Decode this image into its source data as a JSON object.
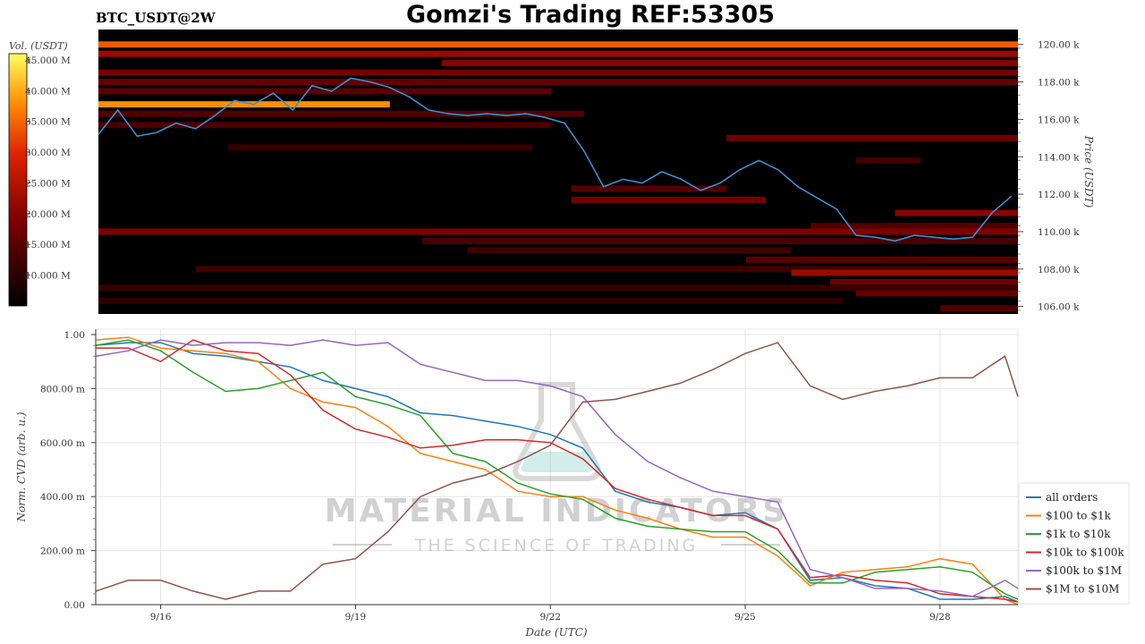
{
  "header": {
    "pair_label": "BTC_USDT@2W",
    "title": "Gomzi's Trading REF:53305"
  },
  "colors": {
    "accent_title": "#000000",
    "heatmap_background": "#000000",
    "price_line": "#3b8fd0"
  },
  "watermark": {
    "brand": "MATERIAL INDICATORS",
    "tagline": "THE SCIENCE OF TRADING",
    "icon": "flask-icon"
  },
  "chart_data": [
    {
      "type": "heatmap",
      "name": "order-book-liquidity",
      "xlabel": "",
      "ylabel": "Price (USDT)",
      "ylim": [
        105600,
        120800
      ],
      "y_ticks": [
        {
          "value": 106000,
          "label": "106.00 k"
        },
        {
          "value": 108000,
          "label": "108.00 k"
        },
        {
          "value": 110000,
          "label": "110.00 k"
        },
        {
          "value": 112000,
          "label": "112.00 k"
        },
        {
          "value": 114000,
          "label": "114.00 k"
        },
        {
          "value": 116000,
          "label": "116.00 k"
        },
        {
          "value": 118000,
          "label": "118.00 k"
        },
        {
          "value": 120000,
          "label": "120.00 k"
        }
      ],
      "colorbar": {
        "label": "Vol. (USDT)",
        "range": [
          5000000,
          46000000
        ],
        "ticks": [
          {
            "value": 10000000,
            "label": "10.000 M"
          },
          {
            "value": 15000000,
            "label": "15.000 M"
          },
          {
            "value": 20000000,
            "label": "20.000 M"
          },
          {
            "value": 25000000,
            "label": "25.000 M"
          },
          {
            "value": 30000000,
            "label": "30.000 M"
          },
          {
            "value": 35000000,
            "label": "35.000 M"
          },
          {
            "value": 40000000,
            "label": "40.000 M"
          },
          {
            "value": 45000000,
            "label": "45.000 M"
          }
        ]
      },
      "liquidity_bands": [
        {
          "price": 120000,
          "start_day": 0.0,
          "end_day": 14.2,
          "volume": 34000000
        },
        {
          "price": 119500,
          "start_day": 0.0,
          "end_day": 14.2,
          "volume": 22000000
        },
        {
          "price": 119000,
          "start_day": 5.3,
          "end_day": 14.2,
          "volume": 20000000
        },
        {
          "price": 118500,
          "start_day": 0.0,
          "end_day": 14.2,
          "volume": 18000000
        },
        {
          "price": 118000,
          "start_day": 0.0,
          "end_day": 14.2,
          "volume": 16000000
        },
        {
          "price": 117500,
          "start_day": 0.0,
          "end_day": 7.0,
          "volume": 15000000
        },
        {
          "price": 116800,
          "start_day": 0.0,
          "end_day": 4.5,
          "volume": 38000000
        },
        {
          "price": 116300,
          "start_day": 0.0,
          "end_day": 7.5,
          "volume": 14000000
        },
        {
          "price": 115700,
          "start_day": 0.0,
          "end_day": 7.0,
          "volume": 13000000
        },
        {
          "price": 115000,
          "start_day": 9.7,
          "end_day": 14.2,
          "volume": 17000000
        },
        {
          "price": 114500,
          "start_day": 2.0,
          "end_day": 6.7,
          "volume": 11000000
        },
        {
          "price": 113800,
          "start_day": 11.7,
          "end_day": 12.7,
          "volume": 12000000
        },
        {
          "price": 112300,
          "start_day": 7.3,
          "end_day": 9.7,
          "volume": 14000000
        },
        {
          "price": 111700,
          "start_day": 7.3,
          "end_day": 10.3,
          "volume": 18000000
        },
        {
          "price": 111000,
          "start_day": 12.3,
          "end_day": 14.2,
          "volume": 20000000
        },
        {
          "price": 110300,
          "start_day": 11.0,
          "end_day": 14.2,
          "volume": 14000000
        },
        {
          "price": 110000,
          "start_day": 0.0,
          "end_day": 14.2,
          "volume": 19000000
        },
        {
          "price": 109500,
          "start_day": 5.0,
          "end_day": 14.2,
          "volume": 13000000
        },
        {
          "price": 109000,
          "start_day": 5.7,
          "end_day": 10.7,
          "volume": 12000000
        },
        {
          "price": 108500,
          "start_day": 10.0,
          "end_day": 14.2,
          "volume": 15000000
        },
        {
          "price": 108000,
          "start_day": 1.5,
          "end_day": 14.2,
          "volume": 12000000
        },
        {
          "price": 107800,
          "start_day": 10.7,
          "end_day": 14.2,
          "volume": 22000000
        },
        {
          "price": 107300,
          "start_day": 11.3,
          "end_day": 14.2,
          "volume": 17000000
        },
        {
          "price": 107000,
          "start_day": 0.0,
          "end_day": 14.2,
          "volume": 11000000
        },
        {
          "price": 106700,
          "start_day": 11.7,
          "end_day": 14.2,
          "volume": 16000000
        },
        {
          "price": 106300,
          "start_day": 0.0,
          "end_day": 11.5,
          "volume": 10000000
        },
        {
          "price": 105900,
          "start_day": 13.0,
          "end_day": 14.2,
          "volume": 14000000
        }
      ],
      "price_series": {
        "name": "price",
        "days": [
          0.0,
          0.3,
          0.6,
          0.9,
          1.2,
          1.5,
          1.8,
          2.1,
          2.4,
          2.7,
          3.0,
          3.3,
          3.6,
          3.9,
          4.2,
          4.5,
          4.8,
          5.1,
          5.4,
          5.7,
          6.0,
          6.3,
          6.6,
          6.9,
          7.2,
          7.5,
          7.8,
          8.1,
          8.4,
          8.7,
          9.0,
          9.3,
          9.6,
          9.9,
          10.2,
          10.5,
          10.8,
          11.1,
          11.4,
          11.7,
          12.0,
          12.3,
          12.6,
          12.9,
          13.2,
          13.5,
          13.8,
          14.1
        ],
        "values": [
          115200,
          116500,
          115100,
          115300,
          115800,
          115500,
          116200,
          117000,
          116800,
          117400,
          116500,
          117800,
          117500,
          118200,
          118000,
          117700,
          117200,
          116500,
          116300,
          116200,
          116300,
          116200,
          116300,
          116100,
          115800,
          114300,
          112400,
          112800,
          112600,
          113200,
          112800,
          112200,
          112600,
          113300,
          113800,
          113300,
          112400,
          111800,
          111200,
          109800,
          109700,
          109500,
          109800,
          109700,
          109600,
          109700,
          111000,
          111900
        ]
      }
    },
    {
      "type": "line",
      "name": "normalized-cvd",
      "xlabel": "Date (UTC)",
      "ylabel": "Norm. CVD (arb. u.)",
      "xlim_days": [
        0.0,
        14.2
      ],
      "ylim": [
        0.0,
        1.02
      ],
      "x_ticks": [
        {
          "day": 1.0,
          "label": "9/16"
        },
        {
          "day": 4.0,
          "label": "9/19"
        },
        {
          "day": 7.0,
          "label": "9/22"
        },
        {
          "day": 10.0,
          "label": "9/25"
        },
        {
          "day": 13.0,
          "label": "9/28"
        }
      ],
      "y_ticks": [
        {
          "value": 0.0,
          "label": "0.00"
        },
        {
          "value": 0.2,
          "label": "200.00 m"
        },
        {
          "value": 0.4,
          "label": "400.00 m"
        },
        {
          "value": 0.6,
          "label": "600.00 m"
        },
        {
          "value": 0.8,
          "label": "800.00 m"
        },
        {
          "value": 1.0,
          "label": "1.00"
        }
      ],
      "legend_placement": "lower-right outside",
      "x_days": [
        0.0,
        0.5,
        1.0,
        1.5,
        2.0,
        2.5,
        3.0,
        3.5,
        4.0,
        4.5,
        5.0,
        5.5,
        6.0,
        6.5,
        7.0,
        7.5,
        8.0,
        8.5,
        9.0,
        9.5,
        10.0,
        10.5,
        11.0,
        11.5,
        12.0,
        12.5,
        13.0,
        13.5,
        14.0,
        14.2
      ],
      "series": [
        {
          "name": "all orders",
          "color": "#1f77b4",
          "values": [
            0.96,
            0.97,
            0.97,
            0.93,
            0.92,
            0.9,
            0.88,
            0.83,
            0.8,
            0.77,
            0.71,
            0.7,
            0.68,
            0.66,
            0.63,
            0.58,
            0.42,
            0.38,
            0.36,
            0.33,
            0.34,
            0.28,
            0.09,
            0.1,
            0.07,
            0.06,
            0.02,
            0.02,
            0.03,
            0.01
          ]
        },
        {
          "name": "$100 to $1k",
          "color": "#ff7f0e",
          "values": [
            0.98,
            0.99,
            0.95,
            0.94,
            0.93,
            0.9,
            0.8,
            0.75,
            0.73,
            0.66,
            0.56,
            0.53,
            0.5,
            0.42,
            0.4,
            0.4,
            0.35,
            0.32,
            0.28,
            0.25,
            0.25,
            0.18,
            0.07,
            0.12,
            0.13,
            0.14,
            0.17,
            0.15,
            0.02,
            0.0
          ]
        },
        {
          "name": "$1k to $10k",
          "color": "#2ca02c",
          "values": [
            0.96,
            0.98,
            0.94,
            0.86,
            0.79,
            0.8,
            0.83,
            0.86,
            0.77,
            0.74,
            0.7,
            0.56,
            0.53,
            0.45,
            0.41,
            0.39,
            0.32,
            0.29,
            0.28,
            0.27,
            0.27,
            0.2,
            0.08,
            0.08,
            0.12,
            0.13,
            0.14,
            0.12,
            0.04,
            0.02
          ]
        },
        {
          "name": "$10k to $100k",
          "color": "#d62728",
          "values": [
            0.95,
            0.95,
            0.9,
            0.98,
            0.94,
            0.93,
            0.85,
            0.72,
            0.65,
            0.62,
            0.58,
            0.59,
            0.61,
            0.61,
            0.6,
            0.54,
            0.43,
            0.39,
            0.36,
            0.33,
            0.33,
            0.28,
            0.1,
            0.11,
            0.09,
            0.08,
            0.04,
            0.03,
            0.02,
            0.01
          ]
        },
        {
          "name": "$100k to $1M",
          "color": "#9467bd",
          "values": [
            0.92,
            0.94,
            0.98,
            0.96,
            0.97,
            0.97,
            0.96,
            0.98,
            0.96,
            0.97,
            0.89,
            0.86,
            0.83,
            0.83,
            0.81,
            0.77,
            0.63,
            0.53,
            0.47,
            0.42,
            0.4,
            0.38,
            0.13,
            0.1,
            0.06,
            0.06,
            0.05,
            0.03,
            0.09,
            0.06
          ]
        },
        {
          "name": "$1M to $10M",
          "color": "#8c564b",
          "values": [
            0.05,
            0.09,
            0.09,
            0.05,
            0.02,
            0.05,
            0.05,
            0.15,
            0.17,
            0.27,
            0.4,
            0.45,
            0.48,
            0.53,
            0.59,
            0.75,
            0.76,
            0.79,
            0.82,
            0.87,
            0.93,
            0.97,
            0.81,
            0.76,
            0.79,
            0.81,
            0.84,
            0.84,
            0.92,
            0.77
          ]
        }
      ]
    }
  ]
}
